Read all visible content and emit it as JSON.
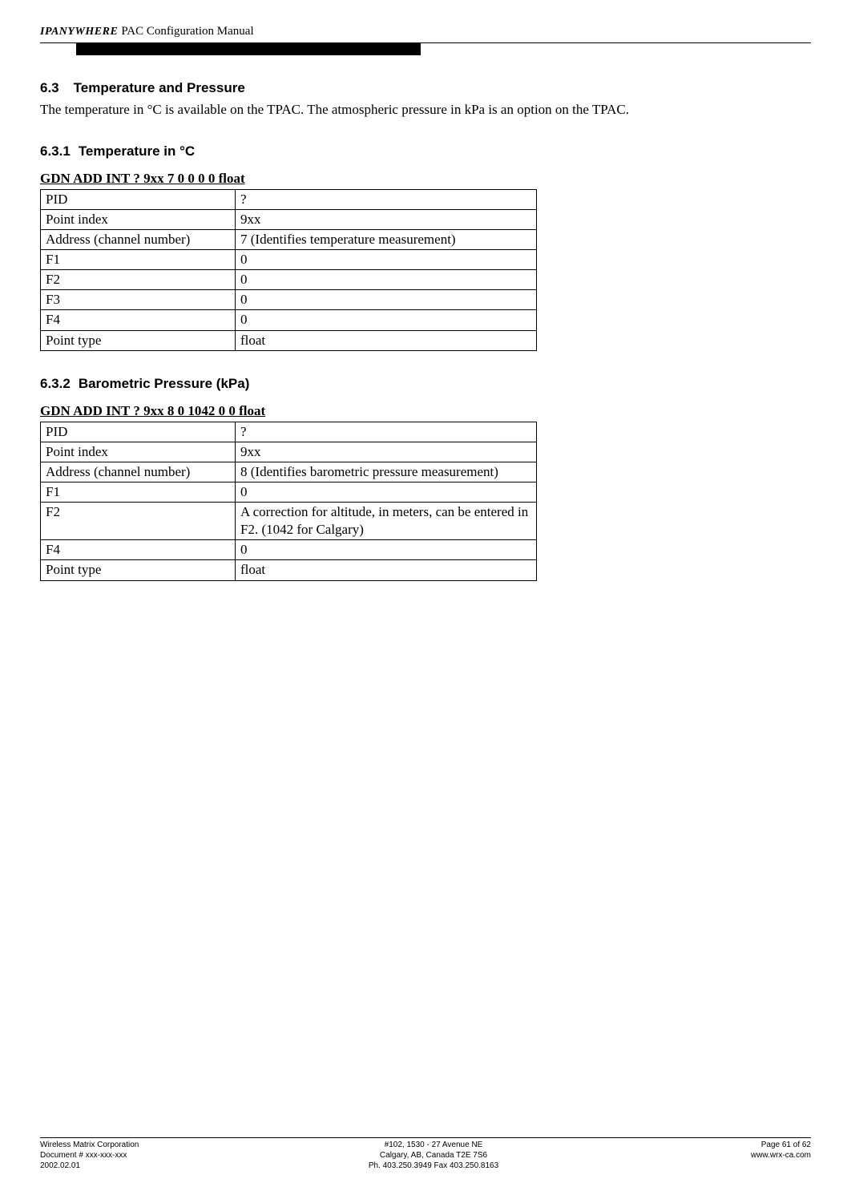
{
  "header": {
    "logo_ip": "IP",
    "logo_anywhere": "ANYWHERE",
    "title": "PAC Configuration Manual"
  },
  "s63": {
    "num": "6.3",
    "title": "Temperature and Pressure",
    "para": "The temperature in °C is available on the TPAC.  The atmospheric pressure in kPa is an option on the TPAC."
  },
  "s631": {
    "num": "6.3.1",
    "title": "Temperature in °C",
    "tbl_title": "GDN ADD INT ? 9xx 7 0 0 0 0 float",
    "rows": [
      [
        "PID",
        "?"
      ],
      [
        "Point index",
        "9xx"
      ],
      [
        "Address (channel number)",
        "7 (Identifies temperature measurement)"
      ],
      [
        "F1",
        "0"
      ],
      [
        "F2",
        "0"
      ],
      [
        "F3",
        "0"
      ],
      [
        "F4",
        "0"
      ],
      [
        "Point type",
        "float"
      ]
    ]
  },
  "s632": {
    "num": "6.3.2",
    "title": "Barometric Pressure (kPa)",
    "tbl_title": "GDN ADD INT ? 9xx 8 0 1042 0 0 float",
    "rows": [
      [
        "PID",
        "?"
      ],
      [
        "Point index",
        "9xx"
      ],
      [
        "Address (channel number)",
        "8 (Identifies barometric pressure measurement)"
      ],
      [
        "F1",
        "0"
      ],
      [
        "F2",
        "A correction for altitude, in meters, can be entered in F2. (1042 for Calgary)"
      ],
      [
        "F4",
        "0"
      ],
      [
        "Point type",
        "float"
      ]
    ]
  },
  "footer": {
    "left1": "Wireless Matrix Corporation",
    "left2": "Document # xxx-xxx-xxx",
    "left3": "2002.02.01",
    "center1": "#102, 1530 - 27 Avenue NE",
    "center2": "Calgary, AB, Canada  T2E 7S6",
    "center3": "Ph. 403.250.3949  Fax 403.250.8163",
    "right1": "Page 61 of 62",
    "right2": "",
    "right3": "www.wrx-ca.com"
  }
}
